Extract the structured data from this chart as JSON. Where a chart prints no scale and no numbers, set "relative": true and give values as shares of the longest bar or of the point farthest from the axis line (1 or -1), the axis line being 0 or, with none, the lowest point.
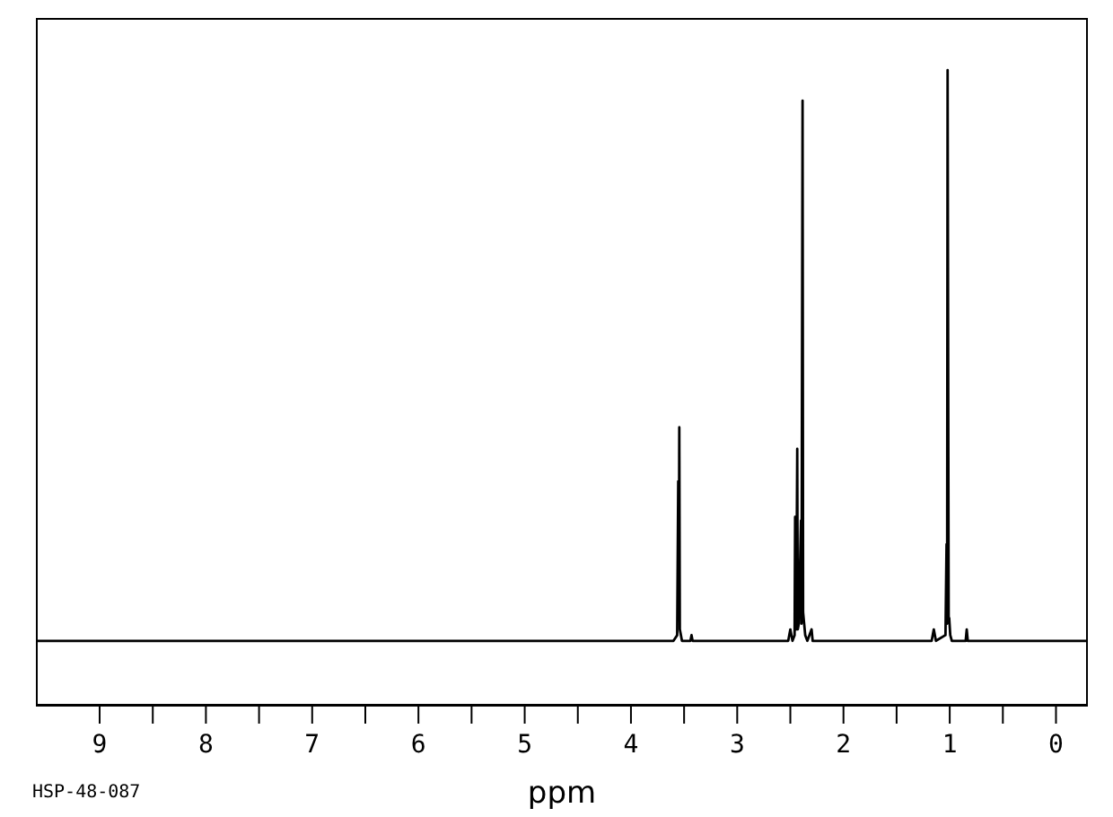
{
  "chart_data": {
    "type": "line",
    "xlabel": "ppm",
    "annotations": [
      "HSP-48-087"
    ],
    "relative": true,
    "color": "#000000",
    "xlim": [
      9.6,
      -0.3
    ],
    "xticks": [
      9,
      {
        "value": 8.5,
        "label": null
      },
      8,
      {
        "value": 7.5,
        "label": null
      },
      7,
      {
        "value": 6.5,
        "label": null
      },
      6,
      {
        "value": 5.5,
        "label": null
      },
      5,
      {
        "value": 4.5,
        "label": null
      },
      4,
      {
        "value": 3.5,
        "label": null
      },
      3,
      {
        "value": 2.5,
        "label": null
      },
      2,
      {
        "value": 1.5,
        "label": null
      },
      1,
      {
        "value": 0.5,
        "label": null
      },
      0
    ],
    "x": [
      9.6,
      3.6,
      3.565,
      3.555,
      3.55,
      3.545,
      3.54,
      3.52,
      3.44,
      3.43,
      3.42,
      2.52,
      2.5,
      2.48,
      2.46,
      2.455,
      2.445,
      2.435,
      2.43,
      2.42,
      2.4,
      2.395,
      2.385,
      2.38,
      2.375,
      2.36,
      2.34,
      2.3,
      2.29,
      2.28,
      1.17,
      1.15,
      1.13,
      1.04,
      1.03,
      1.025,
      1.02,
      1.01,
      1.005,
      0.995,
      0.98,
      0.96,
      0.85,
      0.84,
      0.83,
      -0.3
    ],
    "values": [
      0.102,
      0.102,
      0.111,
      0.353,
      0.147,
      0.438,
      0.12,
      0.102,
      0.102,
      0.111,
      0.102,
      0.102,
      0.12,
      0.102,
      0.111,
      0.297,
      0.12,
      0.404,
      0.12,
      0.129,
      0.291,
      0.129,
      0.952,
      0.147,
      0.138,
      0.111,
      0.102,
      0.12,
      0.102,
      0.102,
      0.102,
      0.12,
      0.102,
      0.111,
      0.254,
      0.129,
      1,
      0.138,
      0.138,
      0.111,
      0.102,
      0.102,
      0.102,
      0.12,
      0.102,
      0.102
    ]
  }
}
